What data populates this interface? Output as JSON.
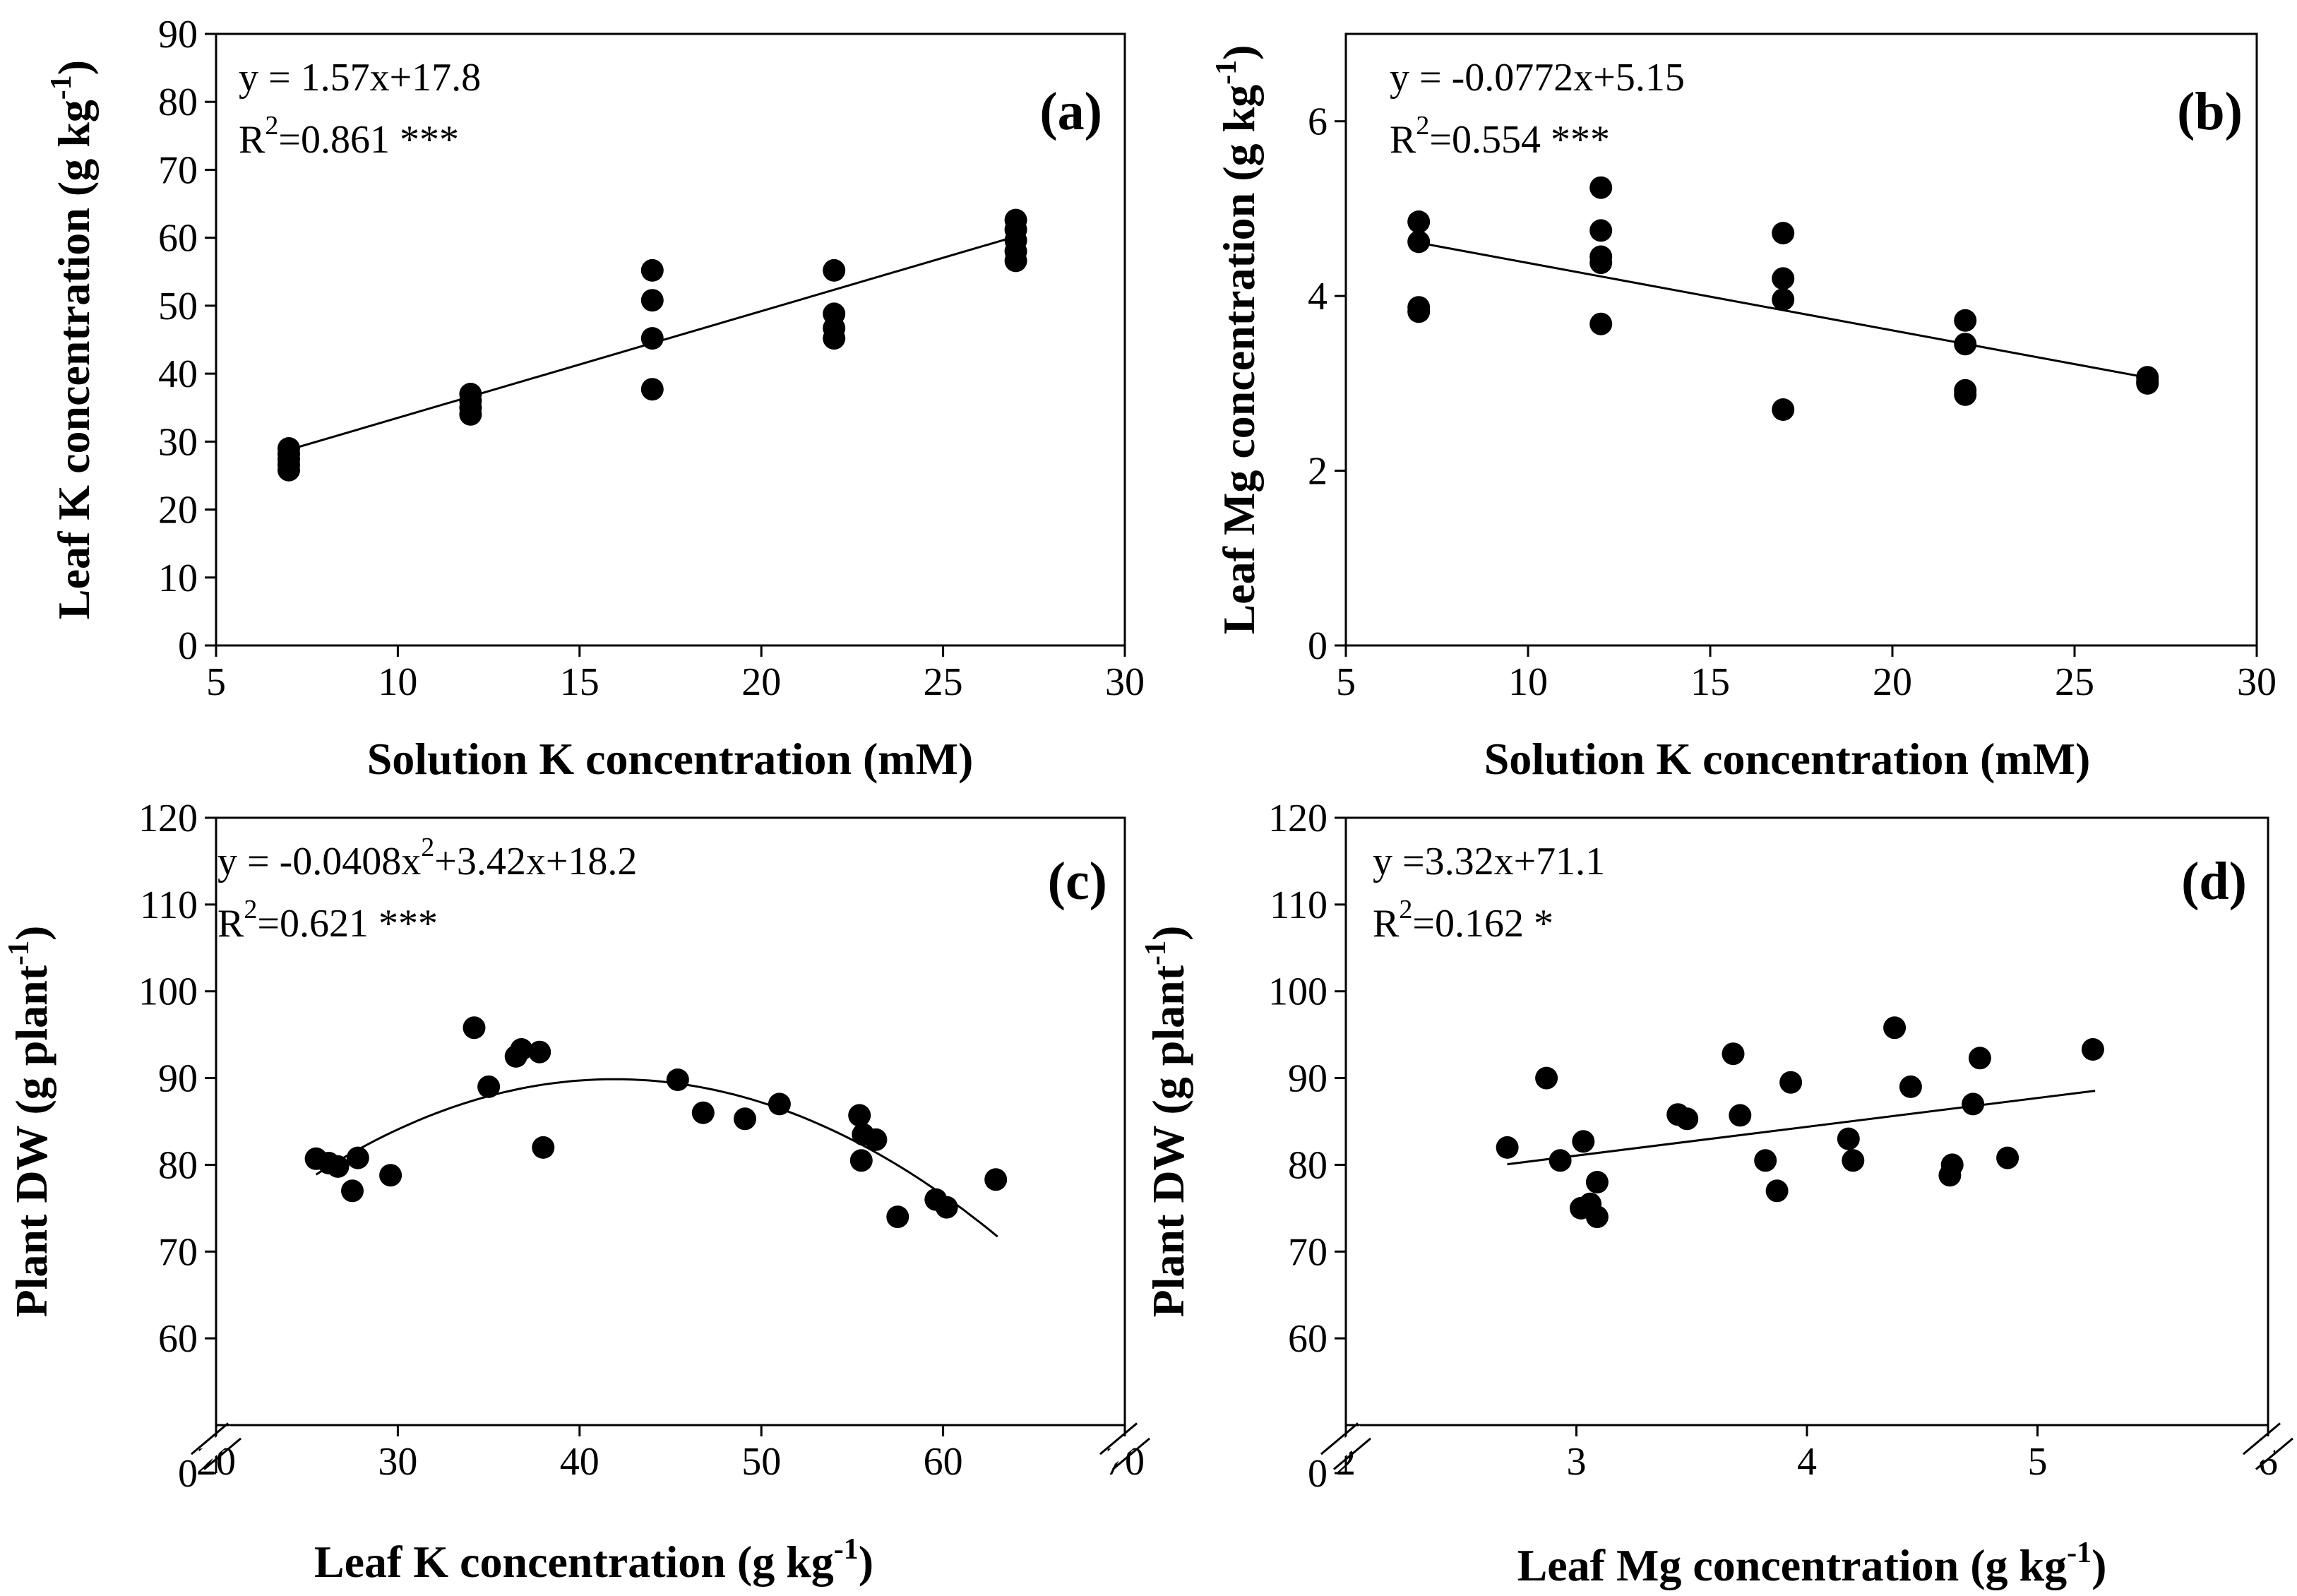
{
  "chart_data": [
    {
      "type": "scatter",
      "panel_label": "(a)",
      "equation": "y = 1.57x+17.8",
      "r2_label": "R",
      "r2_sup": "2",
      "r2_value": "=0.861 ***",
      "ylabel_pre": "Leaf K concentration (g kg",
      "ylabel_sup": "-1",
      "ylabel_post": ")",
      "xlabel_pre": "Solution K concentration (mM)",
      "xlabel_sup": "",
      "xlabel_post": "",
      "xlim": [
        5,
        30
      ],
      "ylim": [
        0,
        90
      ],
      "xticks": [
        5,
        10,
        15,
        20,
        25,
        30
      ],
      "yticks": [
        0,
        10,
        20,
        30,
        40,
        50,
        60,
        70,
        80,
        90
      ],
      "axis_break": false,
      "fit": {
        "type": "linear",
        "coef": [
          17.8,
          1.57
        ],
        "x_range": [
          7,
          27
        ]
      },
      "points": [
        [
          7,
          25.8
        ],
        [
          7,
          26.6
        ],
        [
          7,
          27.4
        ],
        [
          7,
          28.2
        ],
        [
          7,
          29
        ],
        [
          12,
          34
        ],
        [
          12,
          35
        ],
        [
          12,
          36
        ],
        [
          12,
          37
        ],
        [
          17,
          37.7
        ],
        [
          17,
          45.2
        ],
        [
          17,
          50.8
        ],
        [
          17,
          55.2
        ],
        [
          22,
          45.2
        ],
        [
          22,
          46.7
        ],
        [
          22,
          48.8
        ],
        [
          22,
          55.2
        ],
        [
          27,
          56.6
        ],
        [
          27,
          58
        ],
        [
          27,
          59.6
        ],
        [
          27,
          61.2
        ],
        [
          27,
          62.6
        ]
      ]
    },
    {
      "type": "scatter",
      "panel_label": "(b)",
      "equation": "y = -0.0772x+5.15",
      "r2_label": "R",
      "r2_sup": "2",
      "r2_value": "=0.554 ***",
      "ylabel_pre": "Leaf Mg concentration (g kg",
      "ylabel_sup": "-1",
      "ylabel_post": ")",
      "xlabel_pre": "Solution K concentration (mM)",
      "xlabel_sup": "",
      "xlabel_post": "",
      "xlim": [
        5,
        30
      ],
      "ylim": [
        0,
        7
      ],
      "xticks": [
        5,
        10,
        15,
        20,
        25,
        30
      ],
      "yticks": [
        0,
        2,
        4,
        6
      ],
      "axis_break": false,
      "fit": {
        "type": "linear",
        "coef": [
          5.15,
          -0.0772
        ],
        "x_range": [
          7,
          27
        ]
      },
      "points": [
        [
          7,
          4.85
        ],
        [
          7,
          4.62
        ],
        [
          7,
          3.87
        ],
        [
          7,
          3.82
        ],
        [
          12,
          5.24
        ],
        [
          12,
          4.75
        ],
        [
          12,
          4.45
        ],
        [
          12,
          4.38
        ],
        [
          12,
          3.68
        ],
        [
          17,
          4.72
        ],
        [
          17,
          4.2
        ],
        [
          17,
          3.96
        ],
        [
          17,
          2.7
        ],
        [
          22,
          3.72
        ],
        [
          22,
          3.45
        ],
        [
          22,
          2.92
        ],
        [
          22,
          2.87
        ],
        [
          27,
          3.07
        ],
        [
          27,
          3.02
        ],
        [
          27,
          3.0
        ]
      ]
    },
    {
      "type": "scatter",
      "panel_label": "(c)",
      "equation_pre": "y = -0.0408x",
      "equation_sup": "2",
      "equation_post": "+3.42x+18.2",
      "r2_label": "R",
      "r2_sup": "2",
      "r2_value": "=0.621 ***",
      "ylabel_pre": "Plant DW (g plant",
      "ylabel_sup": "-1",
      "ylabel_post": ")",
      "xlabel_pre": "Leaf K concentration (g kg",
      "xlabel_sup": "-1",
      "xlabel_post": ")",
      "xlim": [
        20,
        70
      ],
      "ylim": [
        50,
        120
      ],
      "xticks": [
        20,
        30,
        40,
        50,
        60,
        70
      ],
      "yticks": [
        60,
        70,
        80,
        90,
        100,
        110,
        120
      ],
      "break_tick_label": "0",
      "axis_break": true,
      "fit": {
        "type": "quadratic",
        "coef": [
          18.2,
          3.42,
          -0.0408
        ],
        "x_range": [
          25.5,
          63
        ]
      },
      "points": [
        [
          25.5,
          80.7
        ],
        [
          26.2,
          80.2
        ],
        [
          26.7,
          79.8
        ],
        [
          27.5,
          77
        ],
        [
          27.8,
          80.8
        ],
        [
          29.6,
          78.8
        ],
        [
          34.2,
          95.8
        ],
        [
          35,
          89
        ],
        [
          36.5,
          92.5
        ],
        [
          36.8,
          93.3
        ],
        [
          37.8,
          93
        ],
        [
          38,
          82
        ],
        [
          45.4,
          89.8
        ],
        [
          46.8,
          86
        ],
        [
          49.1,
          85.3
        ],
        [
          51,
          87
        ],
        [
          55.4,
          85.7
        ],
        [
          55.5,
          80.5
        ],
        [
          55.6,
          83.5
        ],
        [
          56.3,
          82.9
        ],
        [
          57.5,
          74
        ],
        [
          59.6,
          76
        ],
        [
          60.2,
          75.1
        ],
        [
          62.9,
          78.3
        ]
      ]
    },
    {
      "type": "scatter",
      "panel_label": "(d)",
      "equation": "y =3.32x+71.1",
      "r2_label": "R",
      "r2_sup": "2",
      "r2_value": "=0.162 *",
      "ylabel_pre": "Plant DW  (g plant",
      "ylabel_sup": "-1",
      "ylabel_post": ")",
      "xlabel_pre": "Leaf  Mg concentration (g kg",
      "xlabel_sup": "-1",
      "xlabel_post": ")",
      "xlim": [
        2,
        6
      ],
      "ylim": [
        50,
        120
      ],
      "xticks": [
        2,
        3,
        4,
        5,
        6
      ],
      "yticks": [
        60,
        70,
        80,
        90,
        100,
        110,
        120
      ],
      "break_tick_label": "0",
      "axis_break": true,
      "fit": {
        "type": "linear",
        "coef": [
          71.1,
          3.32
        ],
        "x_range": [
          2.7,
          5.25
        ]
      },
      "points": [
        [
          2.7,
          82
        ],
        [
          2.87,
          90
        ],
        [
          2.93,
          80.5
        ],
        [
          3.02,
          75
        ],
        [
          3.03,
          82.7
        ],
        [
          3.06,
          75.5
        ],
        [
          3.09,
          78
        ],
        [
          3.09,
          74
        ],
        [
          3.44,
          85.8
        ],
        [
          3.48,
          85.3
        ],
        [
          3.68,
          92.8
        ],
        [
          3.71,
          85.7
        ],
        [
          3.82,
          80.5
        ],
        [
          3.87,
          77
        ],
        [
          3.93,
          89.5
        ],
        [
          4.18,
          83
        ],
        [
          4.2,
          80.5
        ],
        [
          4.38,
          95.8
        ],
        [
          4.45,
          89
        ],
        [
          4.62,
          78.8
        ],
        [
          4.63,
          80
        ],
        [
          4.72,
          87
        ],
        [
          4.75,
          92.3
        ],
        [
          4.87,
          80.8
        ],
        [
          5.24,
          93.3
        ]
      ]
    }
  ]
}
